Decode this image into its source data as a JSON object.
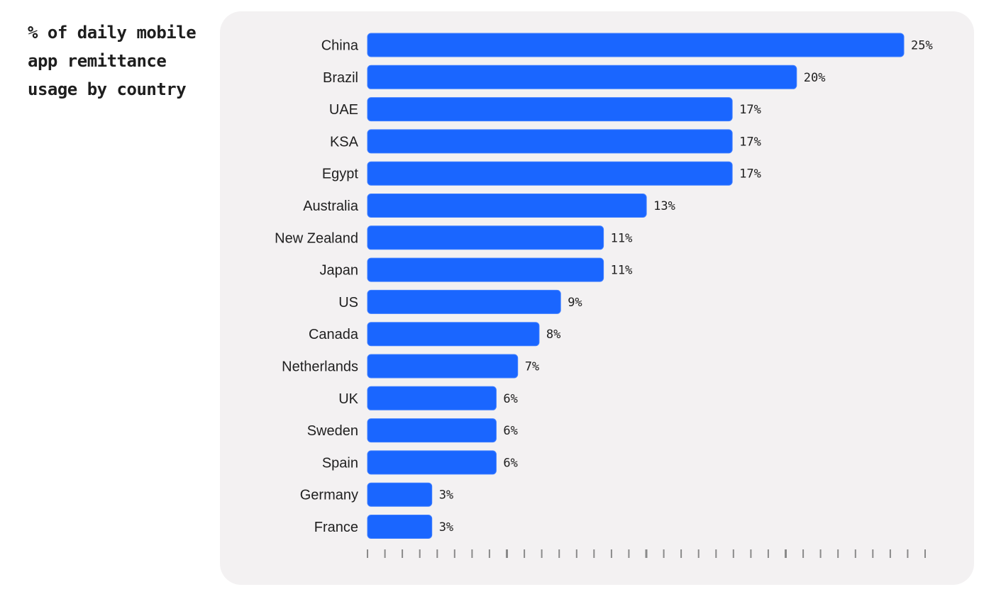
{
  "side_title": "% of daily mobile\napp remittance\nusage by country",
  "colors": {
    "bar": "#1a66ff",
    "bar_edge": "#3d7dff",
    "card_bg": "#f3f1f2",
    "tick": "#8a8a8a"
  },
  "chart_data": {
    "type": "bar",
    "orientation": "horizontal",
    "title": "% of daily mobile app remittance usage by country",
    "xlabel": "",
    "ylabel": "",
    "xlim": [
      0,
      26
    ],
    "grid": false,
    "categories": [
      "China",
      "Brazil",
      "UAE",
      "KSA",
      "Egypt",
      "Australia",
      "New Zealand",
      "Japan",
      "US",
      "Canada",
      "Netherlands",
      "UK",
      "Sweden",
      "Spain",
      "Germany",
      "France"
    ],
    "values": [
      25,
      20,
      17,
      17,
      17,
      13,
      11,
      11,
      9,
      8,
      7,
      6,
      6,
      6,
      3,
      3
    ],
    "value_labels": [
      "25%",
      "20%",
      "17%",
      "17%",
      "17%",
      "13%",
      "11%",
      "11%",
      "9%",
      "8%",
      "7%",
      "6%",
      "6%",
      "6%",
      "3%",
      "3%"
    ],
    "minor_ticks": 32,
    "major_tick_every": 8
  }
}
